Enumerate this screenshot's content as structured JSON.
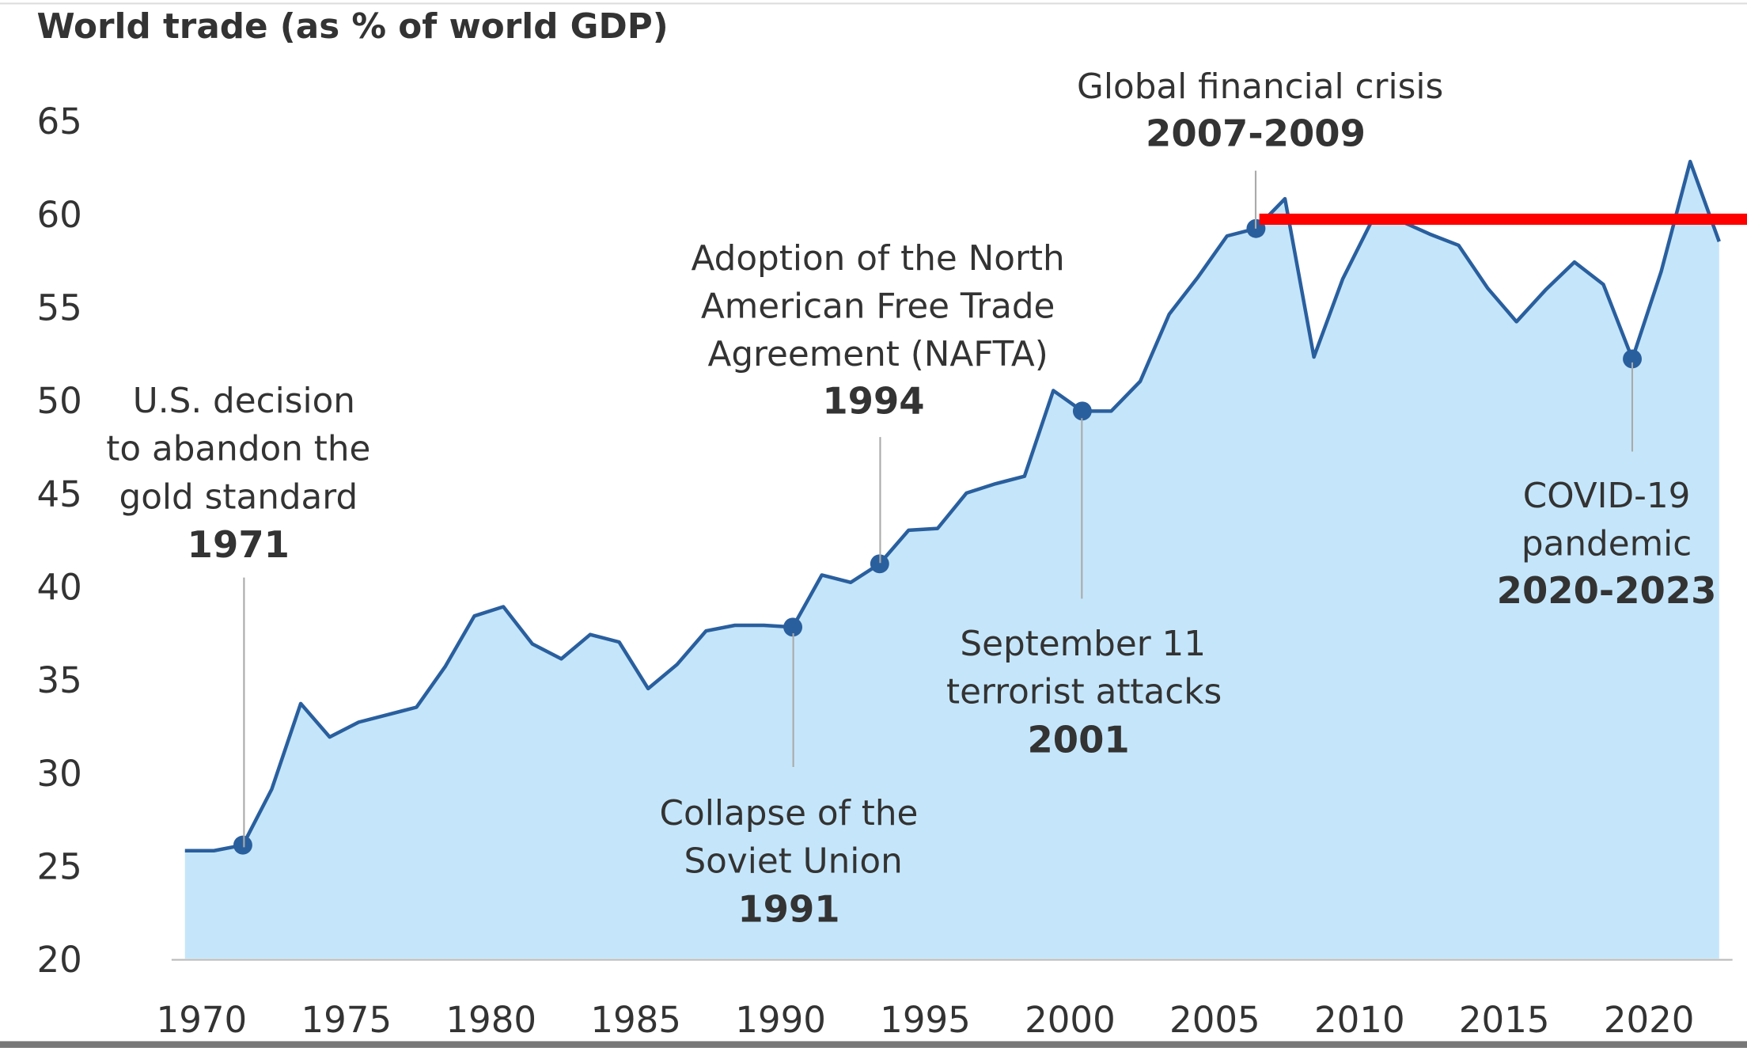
{
  "chart_data": {
    "type": "area",
    "title": "World trade (as % of world GDP)",
    "xlabel": "",
    "ylabel": "",
    "ylim": [
      20,
      65
    ],
    "yticks": [
      20,
      25,
      30,
      35,
      40,
      45,
      50,
      55,
      60,
      65
    ],
    "xticks": [
      1970,
      1975,
      1980,
      1985,
      1990,
      1995,
      2000,
      2005,
      2010,
      2015,
      2020
    ],
    "grid": false,
    "x": [
      1970,
      1971,
      1972,
      1973,
      1974,
      1975,
      1976,
      1977,
      1978,
      1979,
      1980,
      1981,
      1982,
      1983,
      1984,
      1985,
      1986,
      1987,
      1988,
      1989,
      1990,
      1991,
      1992,
      1993,
      1994,
      1995,
      1996,
      1997,
      1998,
      1999,
      2000,
      2001,
      2002,
      2003,
      2004,
      2005,
      2006,
      2007,
      2008,
      2009,
      2010,
      2011,
      2012,
      2013,
      2014,
      2015,
      2016,
      2017,
      2018,
      2019,
      2020,
      2021,
      2022,
      2023
    ],
    "series": [
      {
        "name": "World trade (% of GDP)",
        "color": "#2a5f9e",
        "fill": "#c5e6fa",
        "values": [
          25.8,
          25.8,
          26.1,
          29.1,
          33.7,
          31.9,
          32.7,
          33.1,
          33.5,
          35.7,
          38.4,
          38.9,
          36.9,
          36.1,
          37.4,
          37.0,
          34.5,
          35.8,
          37.6,
          37.9,
          37.9,
          37.8,
          40.6,
          40.2,
          41.2,
          43.0,
          43.1,
          45.0,
          45.5,
          45.9,
          50.5,
          49.4,
          49.4,
          51.0,
          54.6,
          56.6,
          58.8,
          59.2,
          60.8,
          52.3,
          56.5,
          59.6,
          59.6,
          58.9,
          58.3,
          56.0,
          54.2,
          55.9,
          57.4,
          56.2,
          52.2,
          56.9,
          62.8,
          58.5
        ]
      }
    ],
    "highlight_markers": [
      2,
      21,
      24,
      31,
      37,
      50
    ],
    "reference_line": {
      "value": 59.7,
      "color": "#ff0000",
      "from_x": 2007.5,
      "to_x": 2023.5
    },
    "annotations": [
      {
        "lines": [
          "U.S. decision",
          "to abandon the",
          "gold standard"
        ],
        "year": "1971"
      },
      {
        "lines": [
          "Collapse of the",
          "Soviet Union"
        ],
        "year": "1991"
      },
      {
        "lines": [
          "Adoption of the North",
          "American Free Trade",
          "Agreement (NAFTA)"
        ],
        "year": "1994"
      },
      {
        "lines": [
          "September 11",
          "terrorist attacks"
        ],
        "year": "2001"
      },
      {
        "lines": [
          "Global financial crisis"
        ],
        "year": "2007-2009"
      },
      {
        "lines": [
          "COVID-19",
          "pandemic"
        ],
        "year": "2020-2023"
      }
    ]
  }
}
